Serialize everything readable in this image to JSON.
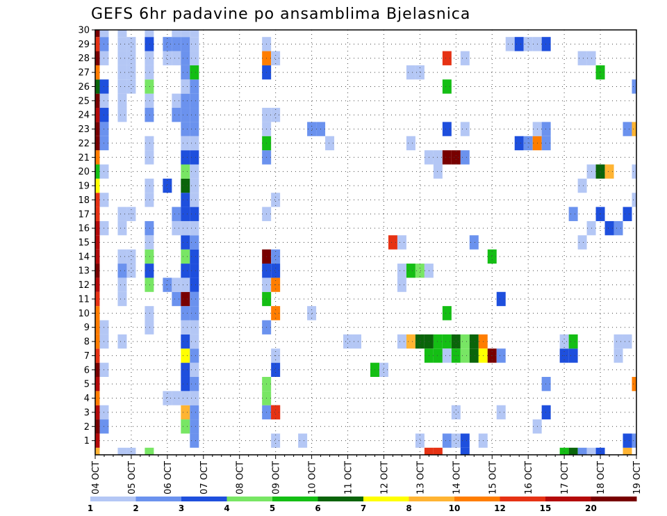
{
  "chart_data": {
    "type": "heatmap",
    "title": "GEFS 6hr padavine po ansamblima Bjelasnica",
    "xlabel": "",
    "ylabel": "",
    "x_ticks": [
      "04 OCT",
      "05 OCT",
      "06 OCT",
      "07 OCT",
      "08 OCT",
      "09 OCT",
      "10 OCT",
      "11 OCT",
      "12 OCT",
      "13 OCT",
      "14 OCT",
      "15 OCT",
      "16 OCT",
      "17 OCT",
      "18 OCT",
      "19 OCT"
    ],
    "y_ticks": [
      "1",
      "2",
      "3",
      "4",
      "5",
      "6",
      "7",
      "8",
      "9",
      "10",
      "11",
      "12",
      "13",
      "14",
      "15",
      "16",
      "17",
      "18",
      "19",
      "20",
      "21",
      "22",
      "23",
      "24",
      "25",
      "26",
      "27",
      "28",
      "29",
      "30"
    ],
    "x_range_steps": [
      0,
      60
    ],
    "y_range_members": [
      0,
      30
    ],
    "grid": true,
    "colorbar": {
      "placement": "bottom",
      "levels": [
        1,
        2,
        3,
        4,
        5,
        6,
        7,
        8,
        10,
        12,
        15,
        20
      ],
      "labels": [
        "1",
        "2",
        "3",
        "4",
        "5",
        "6",
        "7",
        "8",
        "10",
        "12",
        "15",
        "20"
      ],
      "colors": [
        "#b4c7f5",
        "#6b92ee",
        "#1e4fdd",
        "#78e664",
        "#14be14",
        "#0a640a",
        "#ffff00",
        "#ffb432",
        "#ff7d00",
        "#e63214",
        "#b40a0a",
        "#780000"
      ]
    },
    "cells": [
      [
        0,
        0,
        8
      ],
      [
        0,
        1,
        11
      ],
      [
        0,
        2,
        12
      ],
      [
        0,
        3,
        11
      ],
      [
        0,
        4,
        9
      ],
      [
        0,
        5,
        11
      ],
      [
        0,
        6,
        12
      ],
      [
        0,
        7,
        10
      ],
      [
        0,
        8,
        9
      ],
      [
        0,
        9,
        9
      ],
      [
        0,
        10,
        9
      ],
      [
        0,
        11,
        10
      ],
      [
        0,
        12,
        11
      ],
      [
        0,
        13,
        12
      ],
      [
        0,
        14,
        11
      ],
      [
        0,
        15,
        11
      ],
      [
        0,
        16,
        11
      ],
      [
        0,
        17,
        10
      ],
      [
        0,
        18,
        10
      ],
      [
        0,
        19,
        7
      ],
      [
        0,
        20,
        5
      ],
      [
        0,
        21,
        9
      ],
      [
        0,
        22,
        12
      ],
      [
        0,
        23,
        12
      ],
      [
        0,
        24,
        11
      ],
      [
        0,
        25,
        12
      ],
      [
        0,
        26,
        6
      ],
      [
        0,
        27,
        9
      ],
      [
        0,
        28,
        12
      ],
      [
        0,
        29,
        10
      ],
      [
        0,
        30,
        12
      ],
      [
        1,
        2,
        2
      ],
      [
        1,
        3,
        1
      ],
      [
        1,
        6,
        1
      ],
      [
        1,
        8,
        1
      ],
      [
        1,
        9,
        1
      ],
      [
        1,
        16,
        1
      ],
      [
        1,
        18,
        1
      ],
      [
        1,
        20,
        1
      ],
      [
        1,
        22,
        2
      ],
      [
        1,
        23,
        2
      ],
      [
        1,
        24,
        3
      ],
      [
        1,
        25,
        1
      ],
      [
        1,
        26,
        3
      ],
      [
        1,
        28,
        1
      ],
      [
        1,
        29,
        2
      ],
      [
        1,
        30,
        1
      ],
      [
        3,
        13,
        2
      ],
      [
        3,
        14,
        1
      ],
      [
        3,
        11,
        1
      ],
      [
        3,
        12,
        1
      ],
      [
        3,
        8,
        1
      ],
      [
        3,
        0,
        1
      ],
      [
        3,
        16,
        1
      ],
      [
        3,
        17,
        1
      ],
      [
        3,
        24,
        1
      ],
      [
        3,
        25,
        1
      ],
      [
        3,
        26,
        1
      ],
      [
        3,
        27,
        1
      ],
      [
        3,
        28,
        1
      ],
      [
        3,
        29,
        1
      ],
      [
        3,
        30,
        1
      ],
      [
        4,
        0,
        1
      ],
      [
        4,
        13,
        1
      ],
      [
        4,
        14,
        1
      ],
      [
        4,
        17,
        1
      ],
      [
        4,
        26,
        1
      ],
      [
        4,
        27,
        1
      ],
      [
        4,
        28,
        1
      ],
      [
        4,
        29,
        1
      ],
      [
        6,
        0,
        4
      ],
      [
        6,
        9,
        1
      ],
      [
        6,
        10,
        1
      ],
      [
        6,
        12,
        4
      ],
      [
        6,
        13,
        3
      ],
      [
        6,
        14,
        4
      ],
      [
        6,
        15,
        1
      ],
      [
        6,
        16,
        2
      ],
      [
        6,
        18,
        1
      ],
      [
        6,
        19,
        1
      ],
      [
        6,
        21,
        1
      ],
      [
        6,
        22,
        1
      ],
      [
        6,
        24,
        2
      ],
      [
        6,
        25,
        1
      ],
      [
        6,
        26,
        4
      ],
      [
        6,
        27,
        1
      ],
      [
        6,
        28,
        1
      ],
      [
        6,
        29,
        3
      ],
      [
        6,
        30,
        1
      ],
      [
        8,
        12,
        2
      ],
      [
        8,
        19,
        3
      ],
      [
        8,
        28,
        1
      ],
      [
        8,
        29,
        2
      ],
      [
        8,
        4,
        1
      ],
      [
        9,
        4,
        1
      ],
      [
        9,
        11,
        2
      ],
      [
        9,
        12,
        1
      ],
      [
        9,
        16,
        1
      ],
      [
        9,
        17,
        2
      ],
      [
        9,
        29,
        2
      ],
      [
        9,
        30,
        1
      ],
      [
        9,
        28,
        1
      ],
      [
        9,
        24,
        2
      ],
      [
        9,
        25,
        1
      ],
      [
        10,
        2,
        4
      ],
      [
        10,
        3,
        8
      ],
      [
        10,
        4,
        1
      ],
      [
        10,
        5,
        3
      ],
      [
        10,
        6,
        3
      ],
      [
        10,
        7,
        7
      ],
      [
        10,
        8,
        3
      ],
      [
        10,
        9,
        1
      ],
      [
        10,
        10,
        2
      ],
      [
        10,
        11,
        12
      ],
      [
        10,
        12,
        1
      ],
      [
        10,
        13,
        3
      ],
      [
        10,
        14,
        4
      ],
      [
        10,
        15,
        3
      ],
      [
        10,
        16,
        1
      ],
      [
        10,
        17,
        3
      ],
      [
        10,
        18,
        3
      ],
      [
        10,
        19,
        6
      ],
      [
        10,
        20,
        4
      ],
      [
        10,
        21,
        3
      ],
      [
        10,
        22,
        1
      ],
      [
        10,
        23,
        2
      ],
      [
        10,
        24,
        2
      ],
      [
        10,
        25,
        2
      ],
      [
        10,
        26,
        1
      ],
      [
        10,
        27,
        2
      ],
      [
        10,
        28,
        2
      ],
      [
        10,
        29,
        2
      ],
      [
        10,
        30,
        1
      ],
      [
        11,
        1,
        2
      ],
      [
        11,
        2,
        2
      ],
      [
        11,
        3,
        2
      ],
      [
        11,
        4,
        1
      ],
      [
        11,
        5,
        2
      ],
      [
        11,
        6,
        1
      ],
      [
        11,
        7,
        2
      ],
      [
        11,
        8,
        1
      ],
      [
        11,
        9,
        1
      ],
      [
        11,
        10,
        2
      ],
      [
        11,
        11,
        2
      ],
      [
        11,
        12,
        3
      ],
      [
        11,
        13,
        3
      ],
      [
        11,
        14,
        3
      ],
      [
        11,
        15,
        2
      ],
      [
        11,
        16,
        1
      ],
      [
        11,
        17,
        3
      ],
      [
        11,
        18,
        1
      ],
      [
        11,
        19,
        1
      ],
      [
        11,
        20,
        1
      ],
      [
        11,
        21,
        3
      ],
      [
        11,
        22,
        1
      ],
      [
        11,
        23,
        2
      ],
      [
        11,
        24,
        2
      ],
      [
        11,
        25,
        2
      ],
      [
        11,
        26,
        2
      ],
      [
        11,
        27,
        5
      ],
      [
        11,
        28,
        1
      ],
      [
        11,
        29,
        1
      ],
      [
        11,
        30,
        1
      ],
      [
        19,
        3,
        2
      ],
      [
        19,
        4,
        4
      ],
      [
        19,
        5,
        4
      ],
      [
        19,
        9,
        2
      ],
      [
        19,
        11,
        5
      ],
      [
        19,
        12,
        1
      ],
      [
        19,
        13,
        3
      ],
      [
        19,
        14,
        12
      ],
      [
        19,
        17,
        1
      ],
      [
        19,
        21,
        2
      ],
      [
        19,
        22,
        5
      ],
      [
        19,
        23,
        1
      ],
      [
        19,
        24,
        1
      ],
      [
        19,
        27,
        3
      ],
      [
        19,
        28,
        9
      ],
      [
        19,
        29,
        1
      ],
      [
        20,
        1,
        1
      ],
      [
        20,
        3,
        10
      ],
      [
        20,
        3,
        10
      ],
      [
        20,
        6,
        3
      ],
      [
        20,
        7,
        1
      ],
      [
        20,
        10,
        9
      ],
      [
        20,
        12,
        9
      ],
      [
        20,
        13,
        3
      ],
      [
        20,
        14,
        2
      ],
      [
        20,
        18,
        1
      ],
      [
        20,
        24,
        1
      ],
      [
        20,
        28,
        1
      ],
      [
        23,
        1,
        1
      ],
      [
        24,
        10,
        1
      ],
      [
        24,
        23,
        2
      ],
      [
        25,
        23,
        2
      ],
      [
        26,
        22,
        1
      ],
      [
        28,
        8,
        1
      ],
      [
        29,
        8,
        1
      ],
      [
        31,
        6,
        5
      ],
      [
        32,
        6,
        1
      ],
      [
        33,
        15,
        10
      ],
      [
        34,
        15,
        1
      ],
      [
        34,
        8,
        1
      ],
      [
        34,
        13,
        1
      ],
      [
        34,
        12,
        1
      ],
      [
        35,
        8,
        8
      ],
      [
        35,
        13,
        5
      ],
      [
        35,
        22,
        1
      ],
      [
        35,
        27,
        1
      ],
      [
        36,
        8,
        6
      ],
      [
        36,
        13,
        4
      ],
      [
        36,
        27,
        1
      ],
      [
        36,
        1,
        1
      ],
      [
        37,
        8,
        6
      ],
      [
        37,
        13,
        1
      ],
      [
        37,
        0,
        10
      ],
      [
        37,
        7,
        5
      ],
      [
        37,
        21,
        1
      ],
      [
        38,
        8,
        5
      ],
      [
        38,
        7,
        5
      ],
      [
        38,
        0,
        10
      ],
      [
        38,
        20,
        1
      ],
      [
        38,
        21,
        1
      ],
      [
        39,
        8,
        5
      ],
      [
        39,
        7,
        1
      ],
      [
        39,
        10,
        5
      ],
      [
        39,
        21,
        12
      ],
      [
        39,
        23,
        3
      ],
      [
        39,
        28,
        10
      ],
      [
        39,
        26,
        5
      ],
      [
        39,
        1,
        2
      ],
      [
        40,
        8,
        6
      ],
      [
        40,
        21,
        12
      ],
      [
        40,
        1,
        1
      ],
      [
        40,
        3,
        1
      ],
      [
        40,
        7,
        5
      ],
      [
        41,
        8,
        4
      ],
      [
        41,
        7,
        4
      ],
      [
        41,
        1,
        3
      ],
      [
        41,
        0,
        3
      ],
      [
        41,
        21,
        2
      ],
      [
        41,
        23,
        1
      ],
      [
        41,
        28,
        1
      ],
      [
        42,
        8,
        6
      ],
      [
        42,
        7,
        6
      ],
      [
        42,
        15,
        2
      ],
      [
        43,
        8,
        9
      ],
      [
        43,
        7,
        7
      ],
      [
        43,
        1,
        1
      ],
      [
        44,
        7,
        12
      ],
      [
        44,
        14,
        5
      ],
      [
        45,
        7,
        2
      ],
      [
        45,
        11,
        3
      ],
      [
        45,
        3,
        1
      ],
      [
        46,
        29,
        1
      ],
      [
        47,
        29,
        3
      ],
      [
        47,
        22,
        3
      ],
      [
        48,
        22,
        2
      ],
      [
        48,
        29,
        1
      ],
      [
        49,
        22,
        9
      ],
      [
        49,
        23,
        1
      ],
      [
        49,
        29,
        1
      ],
      [
        49,
        2,
        1
      ],
      [
        50,
        29,
        3
      ],
      [
        50,
        22,
        2
      ],
      [
        50,
        23,
        2
      ],
      [
        50,
        5,
        2
      ],
      [
        50,
        3,
        3
      ],
      [
        52,
        0,
        5
      ],
      [
        52,
        7,
        3
      ],
      [
        52,
        8,
        1
      ],
      [
        53,
        0,
        6
      ],
      [
        53,
        7,
        3
      ],
      [
        53,
        8,
        5
      ],
      [
        53,
        17,
        2
      ],
      [
        54,
        0,
        2
      ],
      [
        54,
        15,
        1
      ],
      [
        54,
        19,
        1
      ],
      [
        54,
        28,
        1
      ],
      [
        55,
        0,
        1
      ],
      [
        55,
        16,
        1
      ],
      [
        55,
        28,
        1
      ],
      [
        55,
        20,
        1
      ],
      [
        56,
        0,
        3
      ],
      [
        56,
        17,
        3
      ],
      [
        56,
        20,
        6
      ],
      [
        56,
        27,
        5
      ],
      [
        57,
        16,
        3
      ],
      [
        57,
        20,
        8
      ],
      [
        58,
        7,
        1
      ],
      [
        58,
        8,
        1
      ],
      [
        58,
        16,
        2
      ],
      [
        59,
        0,
        8
      ],
      [
        59,
        1,
        3
      ],
      [
        59,
        8,
        1
      ],
      [
        59,
        17,
        3
      ],
      [
        59,
        23,
        2
      ],
      [
        60,
        1,
        2
      ],
      [
        60,
        5,
        9
      ],
      [
        60,
        18,
        1
      ],
      [
        60,
        20,
        1
      ],
      [
        60,
        23,
        8
      ],
      [
        60,
        26,
        2
      ]
    ]
  }
}
